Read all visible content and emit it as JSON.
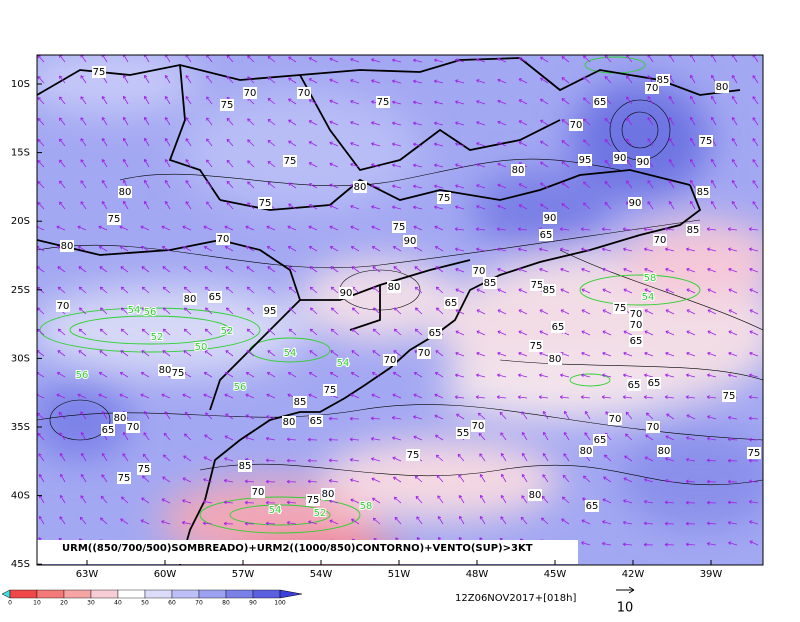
{
  "map": {
    "title": "URM((850/700/500)SOMBREADO)+URM2((1000/850)CONTORNO)+VENTO(SUP)>3KT",
    "lat_labels": [
      "10S",
      "15S",
      "20S",
      "25S",
      "30S",
      "35S",
      "40S",
      "45S"
    ],
    "lon_labels": [
      "63W",
      "60W",
      "57W",
      "54W",
      "51W",
      "48W",
      "45W",
      "42W",
      "39W"
    ],
    "contour_labels": [
      "75",
      "70",
      "70",
      "75",
      "75",
      "65",
      "70",
      "75",
      "80",
      "80",
      "75",
      "75",
      "70",
      "80",
      "75",
      "80",
      "95",
      "90",
      "90",
      "90",
      "65",
      "90",
      "70",
      "85",
      "85",
      "75",
      "85",
      "70",
      "80",
      "75",
      "90",
      "90",
      "80",
      "70",
      "85",
      "75",
      "85",
      "65",
      "70",
      "80",
      "65",
      "95",
      "65",
      "75",
      "80",
      "70",
      "70",
      "65",
      "75",
      "70",
      "70",
      "65",
      "65",
      "65",
      "75",
      "70",
      "70",
      "55",
      "70",
      "65",
      "80",
      "80",
      "75",
      "75",
      "85",
      "75",
      "75",
      "80",
      "65",
      "75",
      "85",
      "80",
      "65",
      "70",
      "80",
      "75",
      "70",
      "75",
      "80",
      "80",
      "65"
    ],
    "moisture_labels": [
      "58",
      "54",
      "54",
      "56",
      "52",
      "50",
      "52",
      "54",
      "56",
      "56",
      "54",
      "52",
      "58",
      "54"
    ],
    "colorbar": {
      "ticks": [
        0,
        10,
        20,
        30,
        40,
        50,
        60,
        70,
        80,
        90,
        100
      ]
    },
    "timestamp": "12Z06NOV2017+[018h]",
    "vector_reference": "10"
  }
}
